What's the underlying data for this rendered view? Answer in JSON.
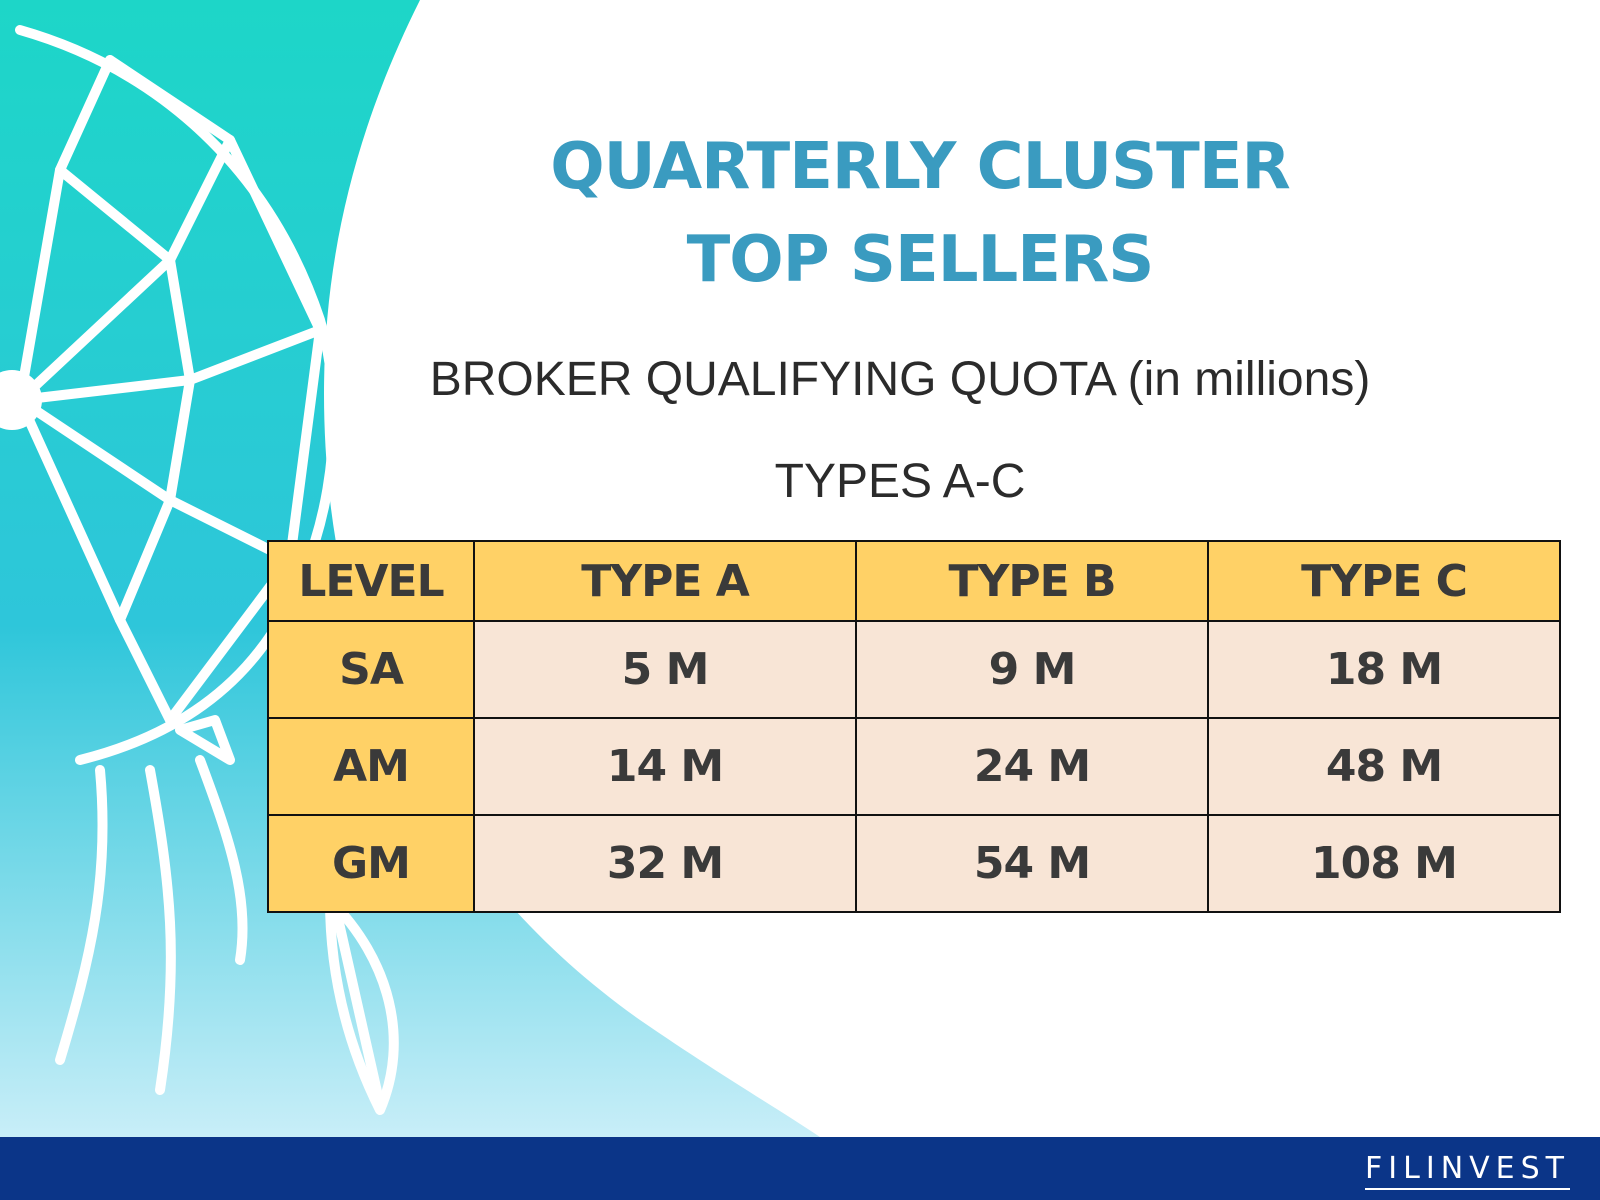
{
  "title": {
    "line1": "QUARTERLY CLUSTER",
    "line2": "TOP SELLERS"
  },
  "subtitle": "BROKER QUALIFYING QUOTA (in millions)",
  "types_caption": "TYPES A-C",
  "table": {
    "headers": [
      "LEVEL",
      "TYPE A",
      "TYPE B",
      "TYPE C"
    ],
    "rows": [
      [
        "SA",
        "5 M",
        "9 M",
        "18 M"
      ],
      [
        "AM",
        "14 M",
        "24 M",
        "48 M"
      ],
      [
        "GM",
        "32 M",
        "54 M",
        "108 M"
      ]
    ]
  },
  "footer": {
    "logo": "FILINVEST"
  },
  "colors": {
    "title": "#3A9BC0",
    "header_fill": "#FFD166",
    "cell_fill": "#F8E5D6",
    "footer": "#0B3588",
    "background_art": "#1DD6C8"
  },
  "decor": {
    "background_art": "dreamcatcher-art"
  }
}
